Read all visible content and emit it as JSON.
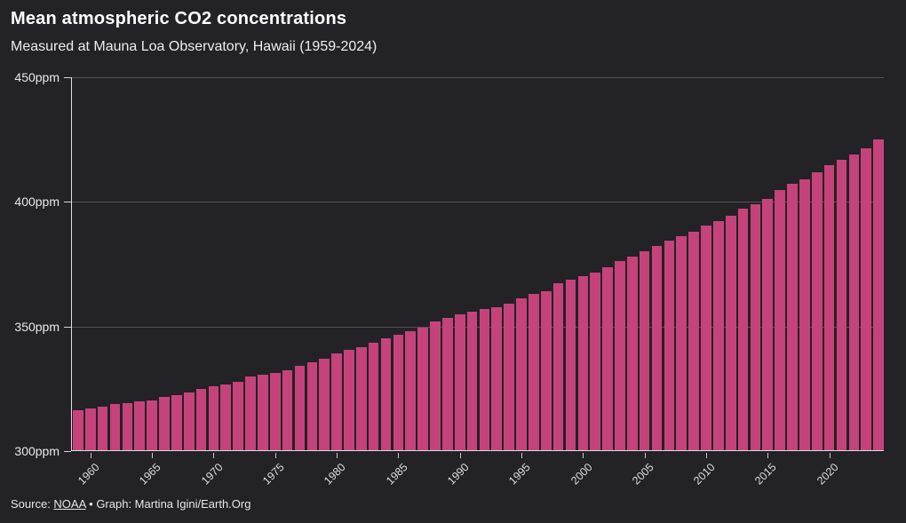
{
  "header": {
    "title": "Mean atmospheric CO2 concentrations",
    "subtitle": "Measured at Mauna Loa Observatory, Hawaii (1959-2024)"
  },
  "footer": {
    "source_label": "Source: ",
    "source_link": "NOAA",
    "credit": " • Graph: Martina Igini/Earth.Org"
  },
  "colors": {
    "background": "#232227",
    "bar": "#c5437a",
    "axis_line": "#ffffff",
    "grid_line": "#55525c",
    "title_text": "#ffffff",
    "subtitle_text": "#ededed",
    "tick_label_text": "#e3e3e3",
    "footer_text": "#e6e6e6"
  },
  "chart_data": {
    "type": "bar",
    "title": "Mean atmospheric CO2 concentrations",
    "subtitle": "Measured at Mauna Loa Observatory, Hawaii (1959-2024)",
    "unit": "ppm",
    "legend": "none",
    "grid": true,
    "ylim": [
      300,
      450
    ],
    "yticks": [
      300,
      350,
      400,
      450
    ],
    "ytick_labels": [
      "300ppm",
      "350ppm",
      "400ppm",
      "450ppm"
    ],
    "xticks": [
      1960,
      1965,
      1970,
      1975,
      1980,
      1985,
      1990,
      1995,
      2000,
      2005,
      2010,
      2015,
      2020
    ],
    "xtick_labels": [
      "1960",
      "1965",
      "1970",
      "1975",
      "1980",
      "1985",
      "1990",
      "1995",
      "2000",
      "2005",
      "2010",
      "2015",
      "2020"
    ],
    "x": [
      1959,
      1960,
      1961,
      1962,
      1963,
      1964,
      1965,
      1966,
      1967,
      1968,
      1969,
      1970,
      1971,
      1972,
      1973,
      1974,
      1975,
      1976,
      1977,
      1978,
      1979,
      1980,
      1981,
      1982,
      1983,
      1984,
      1985,
      1986,
      1987,
      1988,
      1989,
      1990,
      1991,
      1992,
      1993,
      1994,
      1995,
      1996,
      1997,
      1998,
      1999,
      2000,
      2001,
      2002,
      2003,
      2004,
      2005,
      2006,
      2007,
      2008,
      2009,
      2010,
      2011,
      2012,
      2013,
      2014,
      2015,
      2016,
      2017,
      2018,
      2019,
      2020,
      2021,
      2022,
      2023,
      2024
    ],
    "values": [
      315.98,
      316.91,
      317.64,
      318.45,
      318.99,
      319.62,
      320.04,
      321.37,
      322.18,
      323.05,
      324.62,
      325.68,
      326.32,
      327.46,
      329.68,
      330.19,
      331.12,
      332.03,
      333.84,
      335.41,
      336.84,
      338.76,
      340.12,
      341.48,
      343.15,
      344.87,
      346.35,
      347.61,
      349.31,
      351.69,
      353.2,
      354.45,
      355.7,
      356.54,
      357.21,
      358.96,
      360.97,
      362.74,
      363.88,
      366.84,
      368.54,
      369.71,
      371.32,
      373.45,
      375.98,
      377.7,
      379.98,
      382.09,
      384.02,
      385.83,
      387.64,
      390.1,
      391.85,
      394.06,
      396.74,
      398.81,
      401.01,
      404.41,
      406.76,
      408.72,
      411.66,
      414.24,
      416.45,
      418.56,
      421.08,
      424.61
    ]
  }
}
